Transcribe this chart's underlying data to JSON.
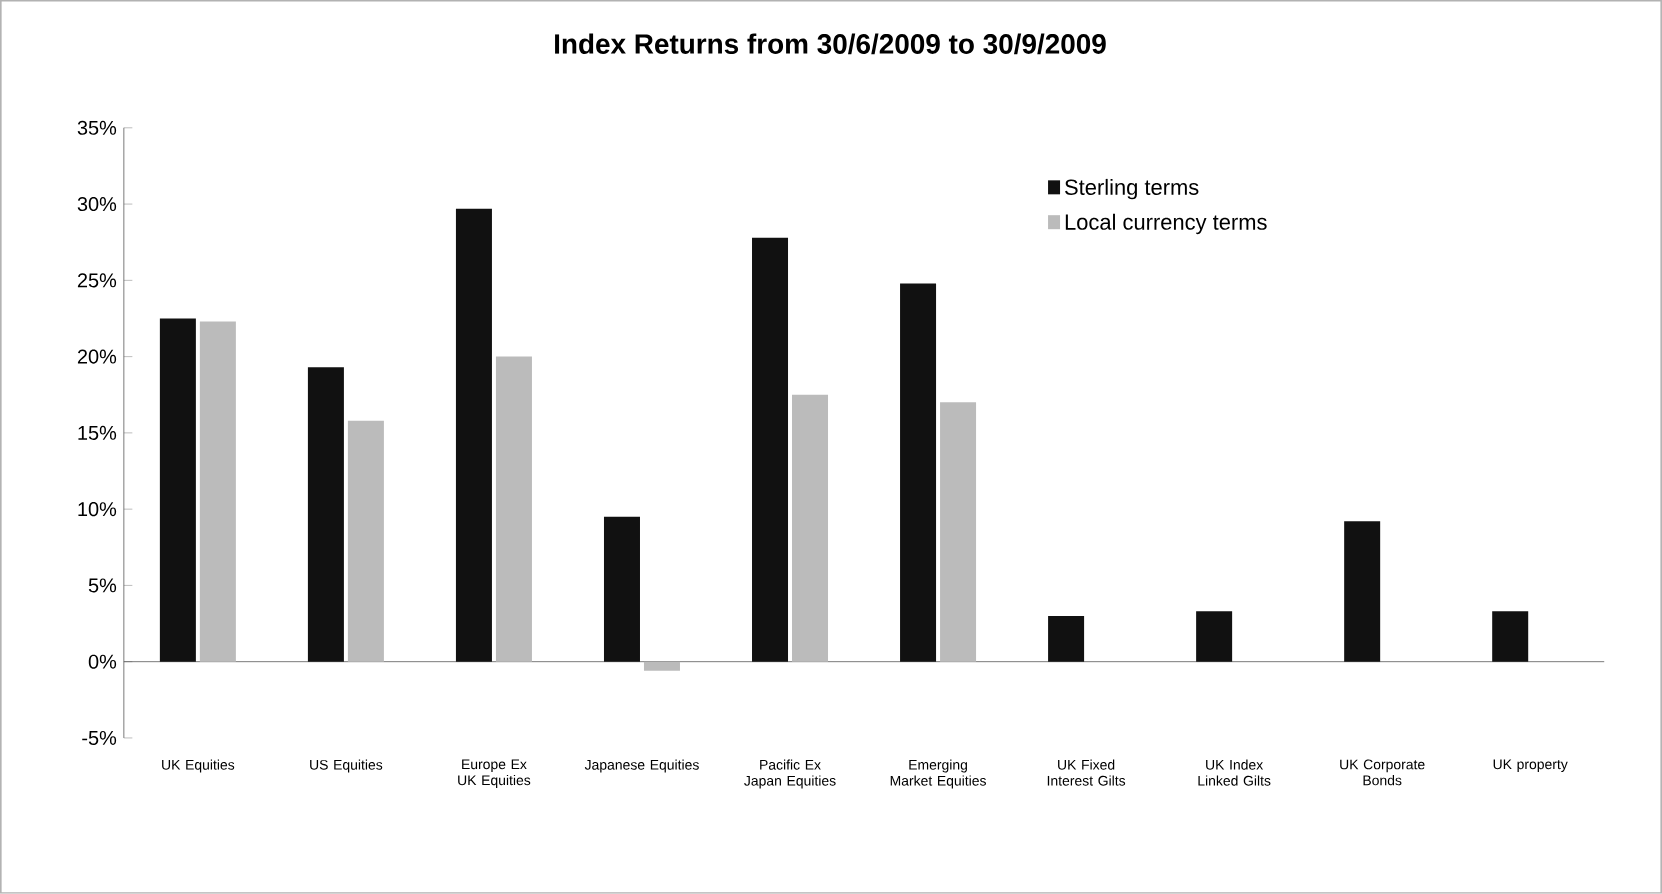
{
  "chart_data": {
    "type": "bar",
    "title": "Index Returns from 30/6/2009 to 30/9/2009",
    "categories": [
      "UK Equities",
      "US Equities",
      "Europe Ex UK Equities",
      "Japanese Equities",
      "Pacific Ex Japan Equities",
      "Emerging Market Equities",
      "UK Fixed Interest Gilts",
      "UK Index Linked Gilts",
      "UK Corporate Bonds",
      "UK property"
    ],
    "series": [
      {
        "name": "Sterling terms",
        "color": "#111111",
        "values": [
          22.5,
          19.3,
          29.7,
          9.5,
          27.8,
          24.8,
          3.0,
          3.3,
          9.2,
          3.3
        ]
      },
      {
        "name": "Local currency terms",
        "color": "#bbbbbb",
        "values": [
          22.3,
          15.8,
          20.0,
          -0.6,
          17.5,
          17.0,
          null,
          null,
          null,
          null
        ]
      }
    ],
    "ylim": [
      -5,
      35
    ],
    "yticks": [
      {
        "value": -5,
        "label": "-5%"
      },
      {
        "value": 0,
        "label": "0%"
      },
      {
        "value": 5,
        "label": "5%"
      },
      {
        "value": 10,
        "label": "10%"
      },
      {
        "value": 15,
        "label": "15%"
      },
      {
        "value": 20,
        "label": "20%"
      },
      {
        "value": 25,
        "label": "25%"
      },
      {
        "value": 30,
        "label": "30%"
      },
      {
        "value": 35,
        "label": "35%"
      }
    ],
    "legend": "top right"
  }
}
